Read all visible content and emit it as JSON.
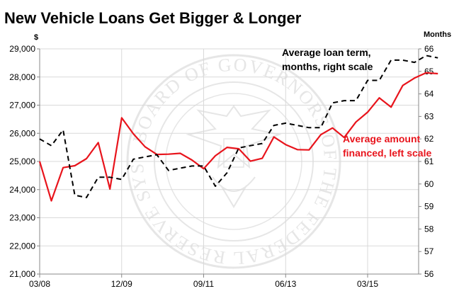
{
  "watermark": {
    "text": "BOARD OF GOVERNORS OF THE FEDERAL RESERVE SYSTEM"
  },
  "chart_data": {
    "type": "line",
    "title": "New Vehicle Loans Get Bigger & Longer",
    "left_axis": {
      "unit_label": "$",
      "ylim": [
        21000,
        29000
      ],
      "ticks": [
        21000,
        22000,
        23000,
        24000,
        25000,
        26000,
        27000,
        28000,
        29000
      ],
      "tick_labels": [
        "21,000",
        "22,000",
        "23,000",
        "24,000",
        "25,000",
        "26,000",
        "27,000",
        "28,000",
        "29,000"
      ]
    },
    "right_axis": {
      "unit_label": "Months",
      "ylim": [
        56,
        66
      ],
      "ticks": [
        56,
        57,
        58,
        59,
        60,
        61,
        62,
        63,
        64,
        65,
        66
      ],
      "tick_labels": [
        "56",
        "57",
        "58",
        "59",
        "60",
        "61",
        "62",
        "63",
        "64",
        "65",
        "66"
      ]
    },
    "x_axis": {
      "range": [
        "2008-03",
        "2016-06"
      ],
      "tick_labels": [
        "03/08",
        "12/09",
        "09/11",
        "06/13",
        "03/15"
      ],
      "tick_months": [
        "2008-03",
        "2009-12",
        "2011-09",
        "2013-06",
        "2015-03"
      ]
    },
    "grid": true,
    "series": [
      {
        "name": "Average amount financed, left scale",
        "axis": "left",
        "color": "#e8141c",
        "style": "solid",
        "points": [
          [
            "2008-03",
            25000
          ],
          [
            "2008-06",
            23600
          ],
          [
            "2008-09",
            24780
          ],
          [
            "2008-12",
            24850
          ],
          [
            "2009-03",
            25100
          ],
          [
            "2009-06",
            25670
          ],
          [
            "2009-09",
            24020
          ],
          [
            "2009-12",
            26550
          ],
          [
            "2010-03",
            25980
          ],
          [
            "2010-06",
            25520
          ],
          [
            "2010-09",
            25250
          ],
          [
            "2010-12",
            25260
          ],
          [
            "2011-03",
            25290
          ],
          [
            "2011-06",
            25050
          ],
          [
            "2011-09",
            24740
          ],
          [
            "2011-12",
            25200
          ],
          [
            "2012-03",
            25500
          ],
          [
            "2012-06",
            25450
          ],
          [
            "2012-09",
            25010
          ],
          [
            "2012-12",
            25110
          ],
          [
            "2013-03",
            25870
          ],
          [
            "2013-06",
            25600
          ],
          [
            "2013-09",
            25420
          ],
          [
            "2013-12",
            25410
          ],
          [
            "2014-03",
            25950
          ],
          [
            "2014-06",
            26190
          ],
          [
            "2014-09",
            25850
          ],
          [
            "2014-12",
            26400
          ],
          [
            "2015-03",
            26750
          ],
          [
            "2015-06",
            27260
          ],
          [
            "2015-09",
            26930
          ],
          [
            "2015-12",
            27700
          ],
          [
            "2016-03",
            27960
          ],
          [
            "2016-06",
            28150
          ],
          [
            "2016-09",
            28120
          ]
        ]
      },
      {
        "name": "Average loan term, months, right scale",
        "axis": "right",
        "color": "#000000",
        "style": "dashed",
        "points": [
          [
            "2008-03",
            62.0
          ],
          [
            "2008-06",
            61.7
          ],
          [
            "2008-09",
            62.4
          ],
          [
            "2008-12",
            59.5
          ],
          [
            "2009-03",
            59.4
          ],
          [
            "2009-06",
            60.3
          ],
          [
            "2009-09",
            60.3
          ],
          [
            "2009-12",
            60.2
          ],
          [
            "2010-03",
            61.1
          ],
          [
            "2010-06",
            61.2
          ],
          [
            "2010-09",
            61.3
          ],
          [
            "2010-12",
            60.6
          ],
          [
            "2011-03",
            60.7
          ],
          [
            "2011-06",
            60.8
          ],
          [
            "2011-09",
            60.8
          ],
          [
            "2011-12",
            59.9
          ],
          [
            "2012-03",
            60.5
          ],
          [
            "2012-06",
            61.6
          ],
          [
            "2012-09",
            61.7
          ],
          [
            "2012-12",
            61.8
          ],
          [
            "2013-03",
            62.6
          ],
          [
            "2013-06",
            62.7
          ],
          [
            "2013-09",
            62.6
          ],
          [
            "2013-12",
            62.5
          ],
          [
            "2014-03",
            62.5
          ],
          [
            "2014-06",
            63.6
          ],
          [
            "2014-09",
            63.7
          ],
          [
            "2014-12",
            63.7
          ],
          [
            "2015-03",
            64.6
          ],
          [
            "2015-06",
            64.6
          ],
          [
            "2015-09",
            65.5
          ],
          [
            "2015-12",
            65.5
          ],
          [
            "2016-03",
            65.4
          ],
          [
            "2016-06",
            65.7
          ],
          [
            "2016-09",
            65.6
          ]
        ]
      }
    ],
    "annotations": [
      {
        "series": "Average loan term, months, right scale",
        "lines": [
          "Average loan term,",
          "months, right scale"
        ],
        "color": "#000000",
        "placement": "top-right"
      },
      {
        "series": "Average amount financed, left scale",
        "lines": [
          "Average amount",
          "financed, left scale"
        ],
        "color": "#e8141c",
        "placement": "right-middle"
      }
    ]
  }
}
